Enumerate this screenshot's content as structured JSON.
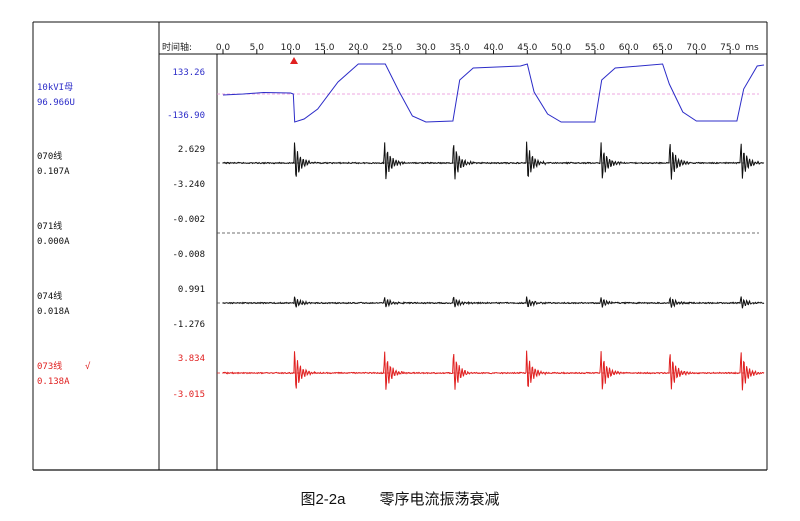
{
  "chart_data": {
    "type": "line",
    "time_axis_label": "时间轴:",
    "x_ticks": [
      "0.0",
      "5.0",
      "10.0",
      "15.0",
      "20.0",
      "25.0",
      "30.0",
      "35.0",
      "40.0",
      "45.0",
      "50.0",
      "55.0",
      "60.0",
      "65.0",
      "70.0",
      "75.0"
    ],
    "x_unit": "ms",
    "xlim": [
      0,
      80
    ],
    "marker_time": 10.5,
    "grid": false,
    "colors": {
      "blue": "#2c2cc8",
      "black": "#111111",
      "red": "#e02020",
      "marker": "#e02020",
      "pink_ref": "#e88ad8"
    },
    "channels": [
      {
        "name": "10kVI母",
        "value": "96.966U",
        "max": "133.26",
        "min": "-136.90",
        "color": "blue",
        "kind": "voltage"
      },
      {
        "name": "070线",
        "value": "0.107A",
        "max": "2.629",
        "min": "-3.240",
        "color": "black",
        "kind": "osc"
      },
      {
        "name": "071线",
        "value": "0.000A",
        "max": "-0.002",
        "min": "-0.008",
        "color": "black",
        "kind": "flat"
      },
      {
        "name": "074线",
        "value": "0.018A",
        "max": "0.991",
        "min": "-1.276",
        "color": "black",
        "kind": "osc_small"
      },
      {
        "name": "073线",
        "check": "√",
        "value": "0.138A",
        "max": "3.834",
        "min": "-3.015",
        "color": "red",
        "kind": "osc"
      }
    ],
    "events_ms": [
      10.5,
      23.8,
      34.0,
      44.8,
      55.8,
      66.0,
      76.5
    ]
  },
  "caption": {
    "number": "图2-2a",
    "text": "零序电流振荡衰减"
  }
}
